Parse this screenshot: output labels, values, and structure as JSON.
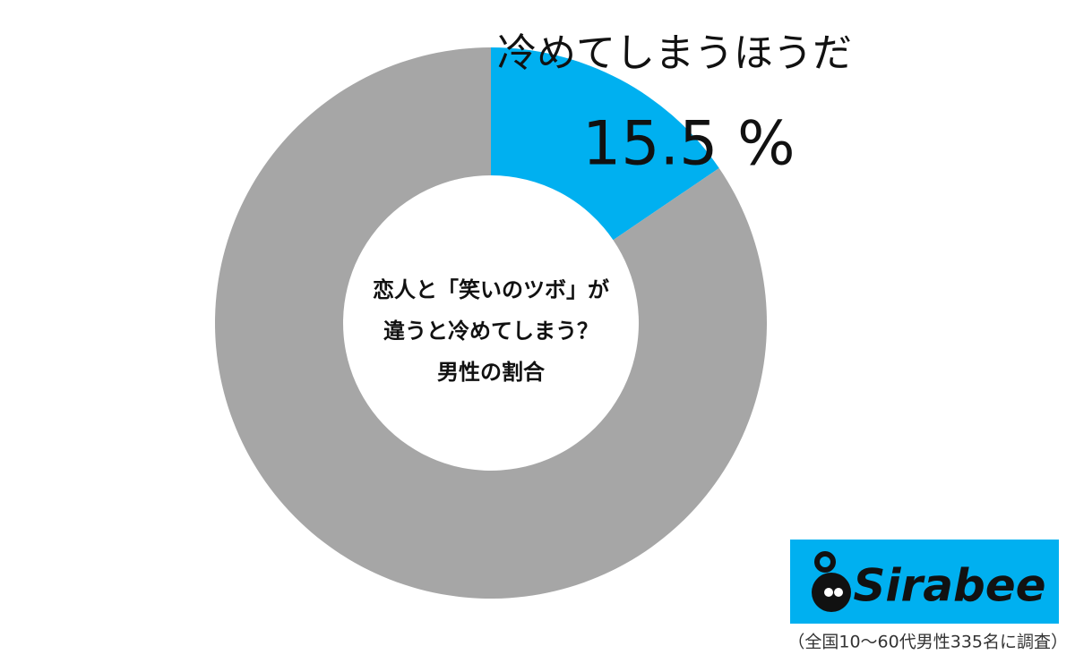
{
  "chart_data": {
    "type": "donut",
    "title_lines": [
      "恋人と「笑いのツボ」が",
      "違うと冷めてしまう？",
      "男性の割合"
    ],
    "categories": [
      "冷めてしまうほうだ",
      null
    ],
    "values": [
      15.5,
      84.5
    ],
    "value_labels": [
      "15.5 %",
      null
    ],
    "colors": [
      "#00b0f0",
      "#a6a6a6"
    ],
    "logo": "Sirabee",
    "note": "（全国10～60代男性335名に調査）"
  }
}
